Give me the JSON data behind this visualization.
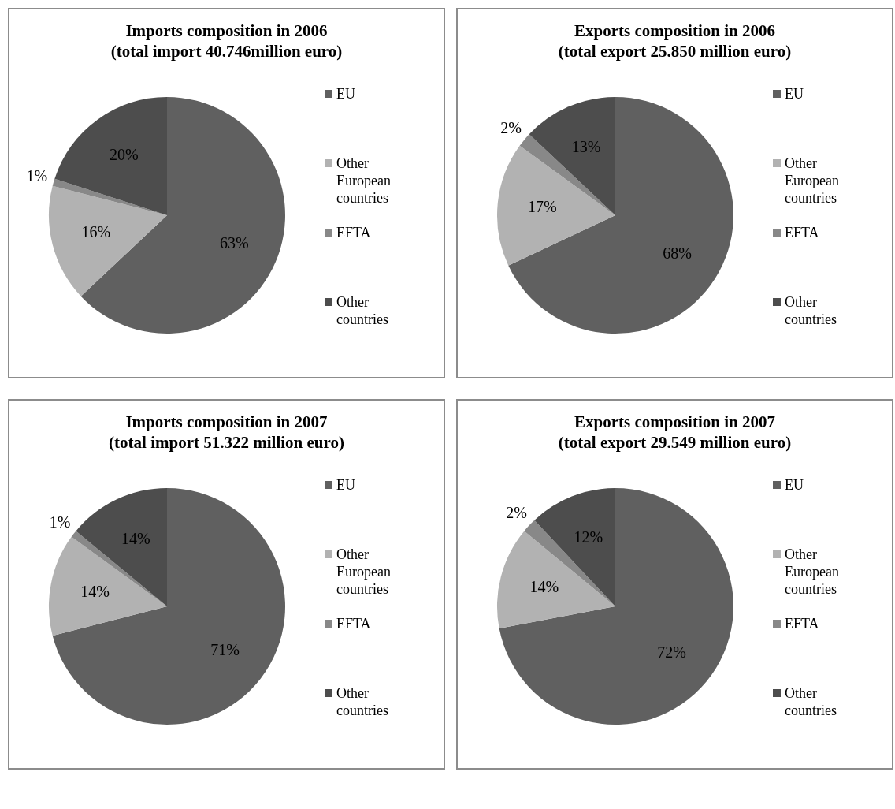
{
  "chart_data": [
    {
      "type": "pie",
      "title": "Imports composition in 2006",
      "subtitle": "(total import 40.746million euro)",
      "categories": [
        "EU",
        "Other European countries",
        "EFTA",
        "Other countries"
      ],
      "values": [
        63,
        16,
        1,
        20
      ],
      "colors": [
        "#606060",
        "#b2b2b2",
        "#888888",
        "#4d4d4d"
      ],
      "value_labels": [
        "63%",
        "16%",
        "1%",
        "20%"
      ],
      "legend": "right"
    },
    {
      "type": "pie",
      "title": "Exports composition in 2006",
      "subtitle": "(total export 25.850 million euro)",
      "categories": [
        "EU",
        "Other European countries",
        "EFTA",
        "Other countries"
      ],
      "values": [
        68,
        17,
        2,
        13
      ],
      "colors": [
        "#606060",
        "#b2b2b2",
        "#888888",
        "#4d4d4d"
      ],
      "value_labels": [
        "68%",
        "17%",
        "2%",
        "13%"
      ],
      "legend": "right"
    },
    {
      "type": "pie",
      "title": "Imports composition in 2007",
      "subtitle": "(total import 51.322 million euro)",
      "categories": [
        "EU",
        "Other European countries",
        "EFTA",
        "Other countries"
      ],
      "values": [
        71,
        14,
        1,
        14
      ],
      "colors": [
        "#606060",
        "#b2b2b2",
        "#888888",
        "#4d4d4d"
      ],
      "value_labels": [
        "71%",
        "14%",
        "1%",
        "14%"
      ],
      "legend": "right"
    },
    {
      "type": "pie",
      "title": "Exports composition in 2007",
      "subtitle": "(total export 29.549 million euro)",
      "categories": [
        "EU",
        "Other European countries",
        "EFTA",
        "Other countries"
      ],
      "values": [
        72,
        14,
        2,
        12
      ],
      "colors": [
        "#606060",
        "#b2b2b2",
        "#888888",
        "#4d4d4d"
      ],
      "value_labels": [
        "72%",
        "14%",
        "2%",
        "12%"
      ],
      "legend": "right"
    }
  ]
}
